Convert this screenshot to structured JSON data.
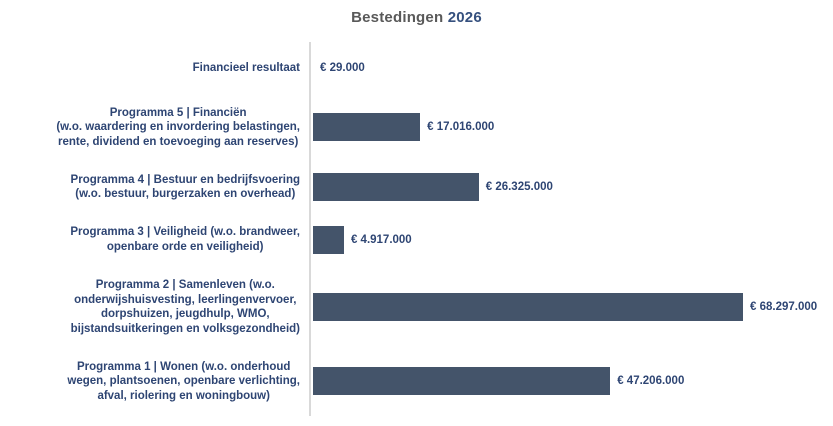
{
  "title": {
    "main": "Bestedingen",
    "year": "2026"
  },
  "colors": {
    "bar": "#44546A",
    "label_text": "#2E4573",
    "title_main": "#595959",
    "title_year": "#35507E",
    "axis_line": "#D9D9D9",
    "background": "#FFFFFF"
  },
  "chart_data": {
    "type": "bar",
    "orientation": "horizontal",
    "title": "Bestedingen 2026",
    "xlabel": "",
    "ylabel": "",
    "xlim": [
      0,
      68297000
    ],
    "grid": false,
    "legend": false,
    "categories": [
      "Financieel resultaat",
      "Programma 5 | Financiën (w.o. waardering en invordering belastingen, rente, dividend en toevoeging aan reserves)",
      "Programma 4 | Bestuur en bedrijfsvoering (w.o. bestuur, burgerzaken en overhead)",
      "Programma 3 | Veiligheid (w.o. brandweer, openbare orde en veiligheid)",
      "Programma 2 | Samenleven (w.o. onderwijshuisvesting, leerlingenvervoer, dorpshuizen, jeugdhulp, WMO, bijstandsuitkeringen en volksgezondheid)",
      "Programma 1 | Wonen (w.o. onderhoud wegen, plantsoenen, openbare verlichting, afval, riolering en woningbouw)"
    ],
    "category_lines": [
      [
        "Financieel resultaat"
      ],
      [
        "Programma 5 | Financiën",
        "(w.o. waardering en invordering belastingen,",
        "rente, dividend en toevoeging aan reserves)"
      ],
      [
        "Programma 4 | Bestuur en bedrijfsvoering",
        "(w.o. bestuur, burgerzaken en overhead)"
      ],
      [
        "Programma 3 | Veiligheid (w.o. brandweer,",
        "openbare orde en veiligheid)"
      ],
      [
        "Programma 2 | Samenleven (w.o.",
        "onderwijshuisvesting, leerlingenvervoer,",
        "dorpshuizen, jeugdhulp, WMO,",
        "bijstandsuitkeringen en volksgezondheid)"
      ],
      [
        "Programma 1 | Wonen (w.o. onderhoud",
        "wegen, plantsoenen, openbare verlichting,",
        "afval, riolering en woningbouw)"
      ]
    ],
    "values": [
      29000,
      17016000,
      26325000,
      4917000,
      68297000,
      47206000
    ],
    "value_labels": [
      "€ 29.000",
      "€ 17.016.000",
      "€ 26.325.000",
      "€ 4.917.000",
      "€ 68.297.000",
      "€ 47.206.000"
    ]
  }
}
